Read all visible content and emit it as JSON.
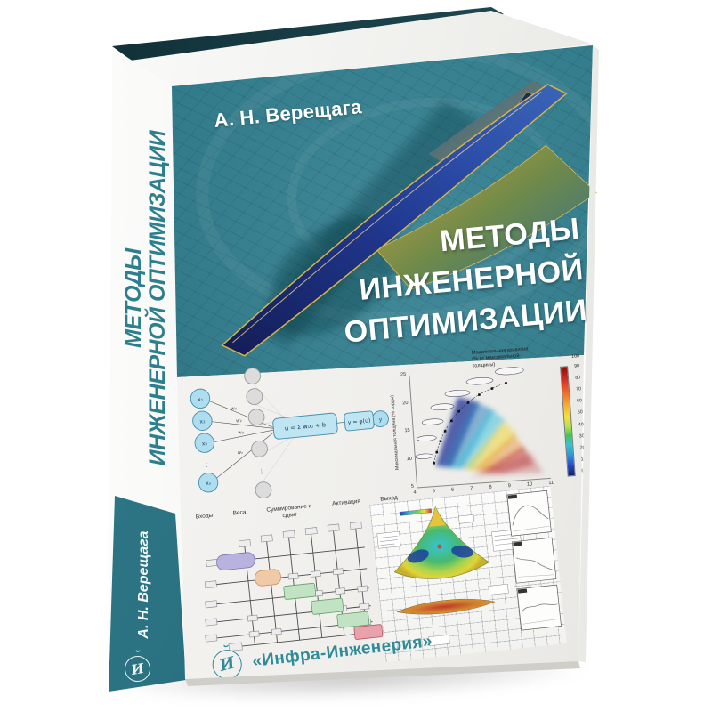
{
  "book": {
    "cover": {
      "author": "А. Н. Верещага",
      "title_lines": [
        "МЕТОДЫ",
        "ИНЖЕНЕРНОЙ",
        "ОПТИМИЗАЦИИ"
      ],
      "publisher_name": "«Инфра-Инженерия»",
      "logo_letter": "И",
      "logo_accent": "˘"
    },
    "spine": {
      "title_lines": [
        "МЕТОДЫ",
        "ИНЖЕНЕРНОЙ ОПТИМИЗАЦИИ"
      ],
      "author": "А. Н. Верещага",
      "logo_letter": "И",
      "logo_accent": "˘"
    },
    "colors": {
      "cover_teal": "#2b7a8b",
      "dark_board_edge": "#10303a",
      "accent_teal": "#2e8b97",
      "panel_white": "#f2f1ee"
    }
  },
  "neuron_diagram": {
    "inputs": [
      "x₁",
      "x₂",
      "x₃",
      "xₙ"
    ],
    "edge_weights": [
      "w₁",
      "w₂",
      "w₃",
      "wₙ"
    ],
    "ellipsis": "⋮",
    "sum_formula": "u = Σ wᵢxᵢ + b",
    "activation_formula": "y = φ(u)",
    "output_label": "y",
    "stage_labels": [
      "Входы",
      "Веса",
      "Суммирование и сдвиг",
      "Активация",
      "Выход"
    ]
  },
  "scatter_plot": {
    "colorbar_title_lines": [
      "Максимальная кривизна",
      "(% от максимальной",
      "толщины)"
    ],
    "colorbar_max": "100",
    "colorbar_ticks": [
      "90",
      "80",
      "70",
      "60",
      "50",
      "40",
      "30",
      "20",
      "10",
      "0"
    ],
    "ylabel": "Максимальная толщина (% хорды)",
    "y_ticks": [
      "25",
      "20",
      "15",
      "10",
      "5"
    ],
    "x_ticks": [
      "4",
      "5",
      "6",
      "7",
      "8",
      "9",
      "10",
      "11"
    ],
    "x_scale": "× 10⁻³",
    "xlabel": "Cd"
  }
}
